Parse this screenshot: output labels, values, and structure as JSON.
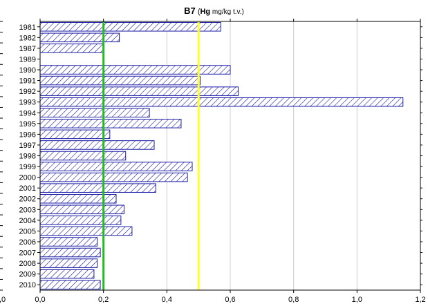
{
  "chart_data": {
    "type": "bar",
    "orientation": "horizontal",
    "title": {
      "station": "B7",
      "paren_open": "(",
      "element": "Hg",
      "unit": " mg/kg t.v.)"
    },
    "categories": [
      "1981",
      "1982",
      "1987",
      "1989",
      "1990",
      "1991",
      "1992",
      "1993",
      "1994",
      "1995",
      "1996",
      "1997",
      "1998",
      "1999",
      "2000",
      "2001",
      "2002",
      "2003",
      "2004",
      "2005",
      "2006",
      "2007",
      "2008",
      "2009",
      "2010"
    ],
    "values": [
      0.57,
      0.25,
      0.2,
      null,
      0.6,
      0.505,
      0.625,
      1.145,
      0.345,
      0.445,
      0.22,
      0.36,
      0.27,
      0.48,
      0.465,
      0.365,
      0.24,
      0.265,
      0.255,
      0.29,
      0.18,
      0.19,
      0.18,
      0.17,
      0.19
    ],
    "xlim": [
      0.0,
      1.2
    ],
    "xticks": [
      "0,0",
      "0,2",
      "0,4",
      "0,6",
      "0,8",
      "1,0",
      "1,2"
    ],
    "left_cut_tick": ",0",
    "reference_lines": [
      {
        "value": 0.2,
        "color": "#22bb22"
      },
      {
        "value": 0.5,
        "color": "#ffff22"
      }
    ],
    "grid": "vertical",
    "bar_fill": "hatched",
    "bar_color": "#1a1aa6"
  }
}
